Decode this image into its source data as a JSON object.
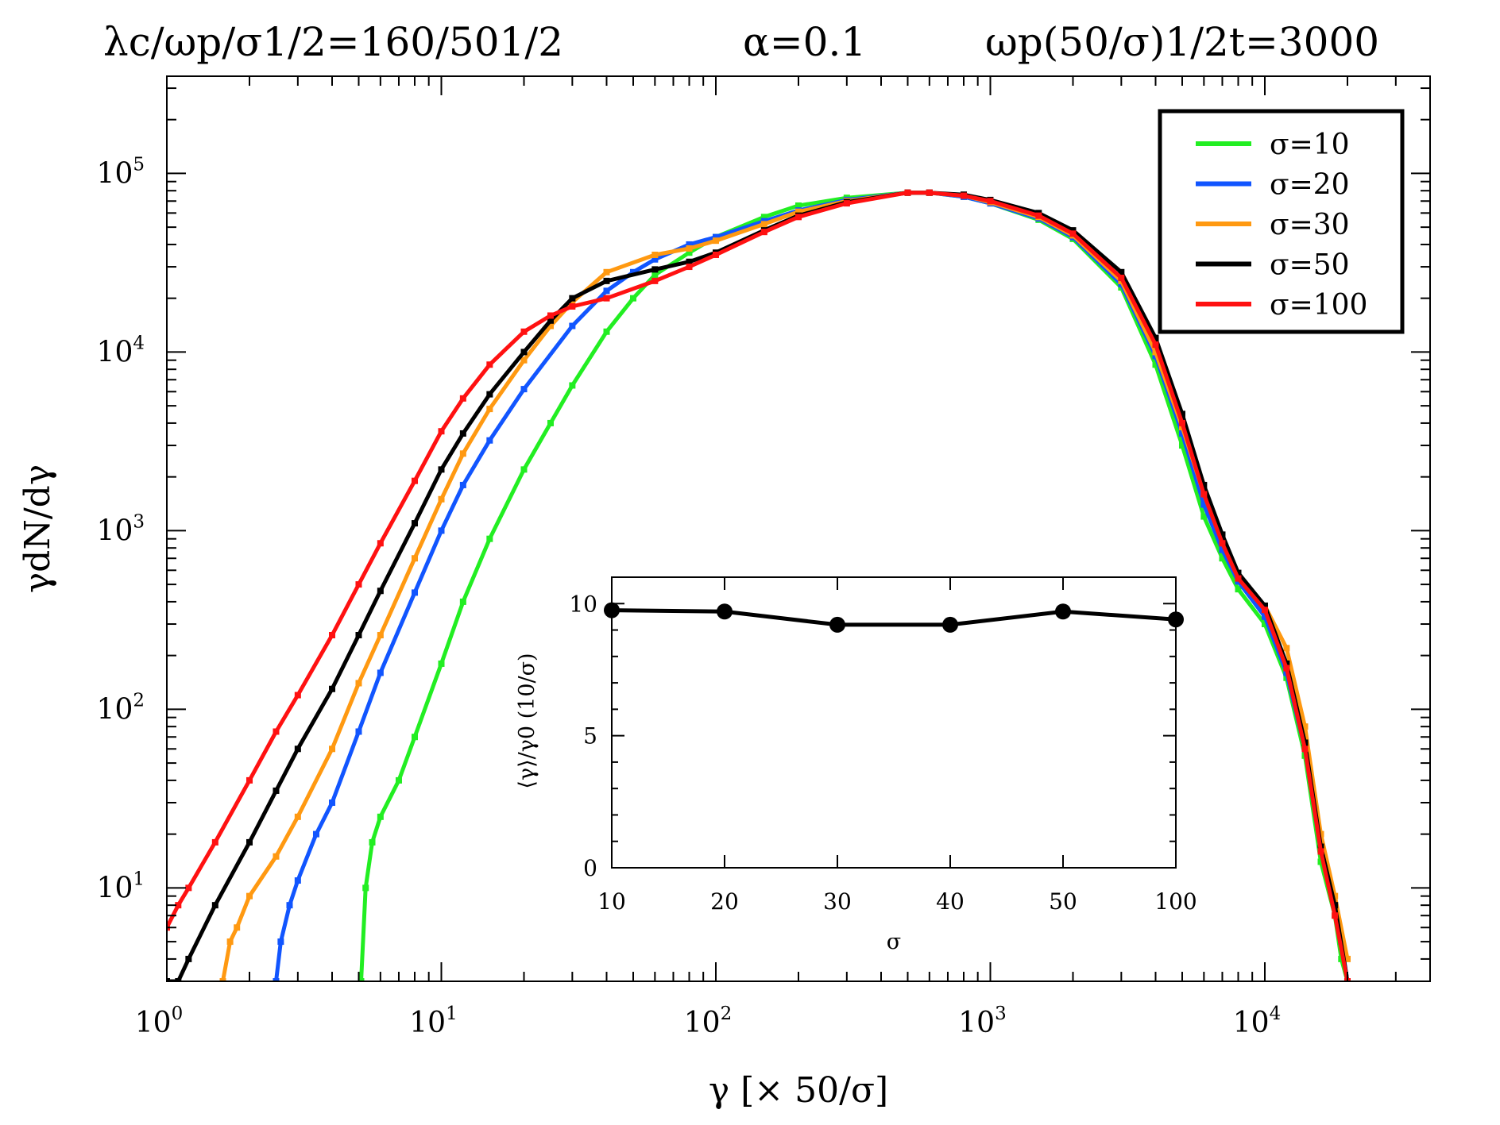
{
  "header": {
    "title_left": "λc/ωp/σ1/2=160/501/2",
    "title_mid": "α=0.1",
    "title_right": "ωp(50/σ)1/2t=3000"
  },
  "chart_data": [
    {
      "type": "line",
      "scale": {
        "x": "log",
        "y": "log"
      },
      "xlabel": "γ    [× 50/σ]",
      "ylabel": "γdN/dγ",
      "xlim": [
        1,
        40000
      ],
      "ylim": [
        3,
        350000
      ],
      "x_ticks": [
        {
          "base": "10",
          "exp": "0",
          "value": 1
        },
        {
          "base": "10",
          "exp": "1",
          "value": 10
        },
        {
          "base": "10",
          "exp": "2",
          "value": 100
        },
        {
          "base": "10",
          "exp": "3",
          "value": 1000
        },
        {
          "base": "10",
          "exp": "4",
          "value": 10000
        }
      ],
      "y_ticks": [
        {
          "base": "10",
          "exp": "1",
          "value": 10
        },
        {
          "base": "10",
          "exp": "2",
          "value": 100
        },
        {
          "base": "10",
          "exp": "3",
          "value": 1000
        },
        {
          "base": "10",
          "exp": "4",
          "value": 10000
        },
        {
          "base": "10",
          "exp": "5",
          "value": 100000
        }
      ],
      "legend": {
        "position": "top-right",
        "labels": [
          "σ=10",
          "σ=20",
          "σ=30",
          "σ=50",
          "σ=100"
        ]
      },
      "series": [
        {
          "name": "σ=10",
          "color": "#22ee22",
          "x": [
            5.1,
            5.3,
            5.6,
            6,
            7,
            8,
            10,
            12,
            15,
            20,
            25,
            30,
            40,
            50,
            60,
            80,
            100,
            150,
            200,
            300,
            500,
            600,
            800,
            1000,
            1500,
            2000,
            3000,
            4000,
            5000,
            6000,
            7000,
            8000,
            10000,
            12000,
            14000,
            16000,
            18000,
            19000,
            20000
          ],
          "y": [
            3,
            10,
            18,
            25,
            40,
            70,
            180,
            400,
            900,
            2200,
            4000,
            6500,
            13000,
            20000,
            27000,
            36000,
            44000,
            57000,
            66000,
            73000,
            78000,
            78000,
            74000,
            68000,
            55000,
            43000,
            23000,
            8500,
            3000,
            1200,
            700,
            470,
            300,
            150,
            55,
            14,
            7,
            4,
            3
          ]
        },
        {
          "name": "σ=20",
          "color": "#1155ff",
          "x": [
            2.5,
            2.6,
            2.8,
            3,
            3.5,
            4,
            5,
            6,
            8,
            10,
            12,
            15,
            20,
            30,
            40,
            50,
            60,
            80,
            100,
            150,
            200,
            300,
            500,
            600,
            800,
            1000,
            1500,
            2000,
            3000,
            4000,
            5000,
            6000,
            7000,
            8000,
            10000,
            12000,
            14000,
            16000,
            18000,
            19000,
            20000
          ],
          "y": [
            3,
            5,
            8,
            11,
            20,
            30,
            75,
            160,
            450,
            1000,
            1800,
            3200,
            6200,
            14000,
            22000,
            28000,
            33000,
            40000,
            44000,
            54000,
            62000,
            71000,
            78000,
            78000,
            74000,
            68000,
            56000,
            44000,
            24000,
            9500,
            3500,
            1400,
            780,
            520,
            330,
            160,
            60,
            16,
            8,
            5,
            3
          ]
        },
        {
          "name": "σ=30",
          "color": "#ff9911",
          "x": [
            1.6,
            1.7,
            1.8,
            2,
            2.5,
            3,
            4,
            5,
            6,
            8,
            10,
            12,
            15,
            20,
            25,
            30,
            40,
            60,
            80,
            100,
            150,
            200,
            300,
            500,
            600,
            800,
            1000,
            1500,
            2000,
            3000,
            4000,
            5000,
            6000,
            7000,
            8000,
            10000,
            12000,
            14000,
            16000,
            18000,
            20000
          ],
          "y": [
            3,
            5,
            6,
            9,
            15,
            25,
            60,
            140,
            260,
            700,
            1500,
            2700,
            4800,
            9000,
            14000,
            19000,
            28000,
            35000,
            38000,
            42000,
            52000,
            61000,
            70000,
            78000,
            78000,
            75000,
            69000,
            57000,
            45000,
            25000,
            10000,
            3800,
            1600,
            860,
            560,
            380,
            220,
            80,
            20,
            9,
            4
          ]
        },
        {
          "name": "σ=50",
          "color": "#000000",
          "x": [
            1,
            1.1,
            1.2,
            1.5,
            2,
            2.5,
            3,
            4,
            5,
            6,
            8,
            10,
            12,
            15,
            20,
            25,
            30,
            40,
            60,
            80,
            100,
            150,
            200,
            300,
            500,
            600,
            800,
            1000,
            1500,
            2000,
            3000,
            4000,
            5000,
            6000,
            7000,
            8000,
            10000,
            12000,
            14000,
            16000,
            18000,
            20000
          ],
          "y": [
            3,
            3,
            4,
            8,
            18,
            35,
            60,
            130,
            260,
            460,
            1100,
            2200,
            3500,
            5800,
            10000,
            15000,
            20000,
            25000,
            29000,
            32000,
            36000,
            48000,
            58000,
            69000,
            78000,
            78000,
            76000,
            71000,
            60000,
            48000,
            28000,
            12000,
            4500,
            1800,
            950,
            580,
            380,
            180,
            65,
            17,
            8,
            3
          ]
        },
        {
          "name": "σ=100",
          "color": "#ff1111",
          "x": [
            1,
            1.1,
            1.2,
            1.5,
            2,
            2.5,
            3,
            4,
            5,
            6,
            8,
            10,
            12,
            15,
            20,
            25,
            30,
            40,
            60,
            80,
            100,
            150,
            200,
            300,
            500,
            600,
            800,
            1000,
            1500,
            2000,
            3000,
            4000,
            5000,
            6000,
            7000,
            8000,
            10000,
            12000,
            14000,
            16000,
            18000,
            20000
          ],
          "y": [
            6,
            8,
            10,
            18,
            40,
            75,
            120,
            260,
            500,
            850,
            1900,
            3600,
            5500,
            8500,
            13000,
            16000,
            18000,
            20000,
            25000,
            30000,
            35000,
            47000,
            57000,
            68000,
            78000,
            78000,
            75000,
            70000,
            58000,
            46000,
            26000,
            11000,
            4000,
            1600,
            850,
            540,
            360,
            170,
            60,
            16,
            7,
            3
          ]
        }
      ]
    },
    {
      "type": "line",
      "scale": {
        "x": "category",
        "y": "linear"
      },
      "categories": [
        "10",
        "20",
        "30",
        "40",
        "50",
        "100"
      ],
      "values": [
        9.75,
        9.7,
        9.2,
        9.2,
        9.7,
        9.4
      ],
      "xlabel": "σ",
      "ylabel": "⟨γ⟩/γ0 (10/σ)",
      "ylim": [
        0,
        11
      ],
      "y_ticks": [
        "0",
        "5",
        "10"
      ],
      "color": "#000000",
      "marker": "circle"
    }
  ]
}
